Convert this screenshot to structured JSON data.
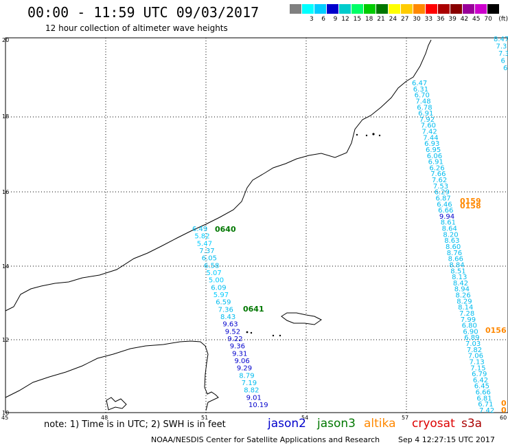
{
  "header": {
    "title": "00:00 - 11:59 UTC 09/03/2017",
    "subtitle": "12 hour collection of altimeter wave heights"
  },
  "scale": {
    "colors": [
      "#808080",
      "#00ffff",
      "#00ccff",
      "#0000cc",
      "#00cccc",
      "#00ff66",
      "#00cc00",
      "#007700",
      "#ffff00",
      "#ffcc00",
      "#ff8800",
      "#ff0000",
      "#aa0000",
      "#880000",
      "#990099",
      "#cc00cc",
      "#000000"
    ],
    "labels": [
      "",
      "3",
      "6",
      "9",
      "12",
      "15",
      "18",
      "21",
      "24",
      "27",
      "30",
      "33",
      "36",
      "39",
      "42",
      "45",
      "70"
    ],
    "unit": "(ft)"
  },
  "map": {
    "x_ticks": [
      "45",
      "48",
      "51",
      "54",
      "57",
      "60"
    ],
    "y_ticks": [
      "20",
      "18",
      "16",
      "14",
      "12",
      "10"
    ],
    "track_west": {
      "values": [
        "6.49",
        "5.82",
        "5.47",
        "7.37",
        "6.05",
        "6.58",
        "5.07",
        "5.00",
        "6.09",
        "5.97",
        "6.59",
        "7.36",
        "8.43",
        "9.63",
        "9.52",
        "9.22",
        "9.36",
        "9.31",
        "9.06",
        "9.29",
        "8.79",
        "7.19",
        "8.82",
        "9.01",
        "10.19"
      ]
    },
    "track_east": {
      "values": [
        "6.47",
        "6.31",
        "6.70",
        "7.48",
        "6.78",
        "6.91",
        "7.92",
        "7.60",
        "7.42",
        "7.44",
        "6.93",
        "6.95",
        "6.06",
        "6.91",
        "6.26",
        "7.66",
        "7.62",
        "7.53",
        "6.29",
        "6.87",
        "6.46",
        "6.66",
        "9.94",
        "8.61",
        "8.64",
        "8.20",
        "8.63",
        "8.60",
        "8.76",
        "8.66",
        "8.84",
        "8.51",
        "8.13",
        "8.42",
        "8.94",
        "8.26",
        "8.29",
        "8.14",
        "7.28",
        "7.99",
        "6.80",
        "6.90",
        "6.89",
        "7.03",
        "7.82",
        "7.06",
        "7.13",
        "7.15",
        "6.79",
        "6.42",
        "6.45",
        "6.66",
        "6.81",
        "6.71",
        "7.42"
      ]
    },
    "track_ne": {
      "values": [
        "8.47",
        "7.3",
        "7.3",
        "6",
        "6"
      ]
    },
    "time_labels": [
      {
        "text": "0640",
        "color": "#007700"
      },
      {
        "text": "0641",
        "color": "#007700"
      },
      {
        "text": "0159",
        "color": "#ff8800"
      },
      {
        "text": "0158",
        "color": "#ff8800"
      },
      {
        "text": "0156",
        "color": "#ff8800"
      },
      {
        "text": "0",
        "color": "#ff8800"
      },
      {
        "text": "0",
        "color": "#ff8800"
      }
    ]
  },
  "footer": {
    "note": "note: 1) Time is in UTC; 2) SWH is in feet",
    "satellites": [
      {
        "name": "jason2",
        "color": "#0000cc"
      },
      {
        "name": "jason3",
        "color": "#007700"
      },
      {
        "name": "altika",
        "color": "#ff8800"
      },
      {
        "name": "cryosat",
        "color": "#dd0000"
      },
      {
        "name": "s3a",
        "color": "#aa0000"
      }
    ],
    "credit": "NOAA/NESDIS Center for Satellite Applications and Research",
    "timestamp": "Sep 4 12:27:15 UTC 2017"
  }
}
